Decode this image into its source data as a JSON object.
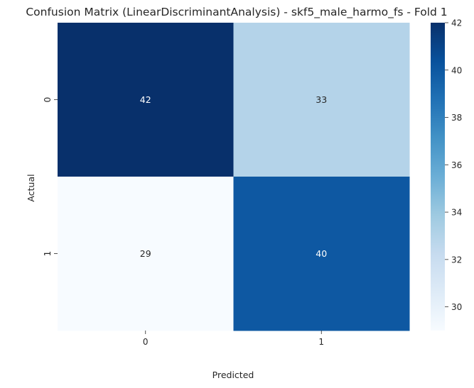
{
  "chart_data": {
    "type": "heatmap",
    "title": "Confusion Matrix (LinearDiscriminantAnalysis) - skf5_male_harmo_fs - Fold 1",
    "xlabel": "Predicted",
    "ylabel": "Actual",
    "x_categories": [
      "0",
      "1"
    ],
    "y_categories": [
      "0",
      "1"
    ],
    "values": [
      [
        42,
        33
      ],
      [
        29,
        40
      ]
    ],
    "colormap": "Blues",
    "colorbar": {
      "min": 29,
      "max": 42,
      "ticks": [
        30,
        32,
        34,
        36,
        38,
        40,
        42
      ]
    },
    "grid": false
  }
}
